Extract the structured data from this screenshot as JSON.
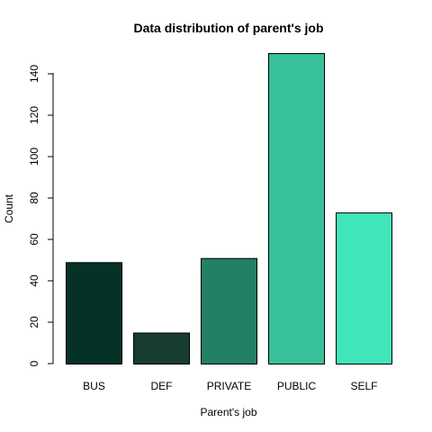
{
  "chart_data": {
    "type": "bar",
    "title": "Data distribution of parent's job",
    "xlabel": "Parent's job",
    "ylabel": "Count",
    "categories": [
      "BUS",
      "DEF",
      "PRIVATE",
      "PUBLIC",
      "SELF"
    ],
    "values": [
      49,
      15,
      51,
      150,
      73
    ],
    "colors": [
      "#043227",
      "#173D33",
      "#237F65",
      "#38C09B",
      "#41E5BB"
    ],
    "ylim": [
      0,
      150
    ],
    "yticks": [
      0,
      20,
      40,
      60,
      80,
      100,
      120,
      140
    ],
    "grid": false,
    "legend": "none"
  }
}
